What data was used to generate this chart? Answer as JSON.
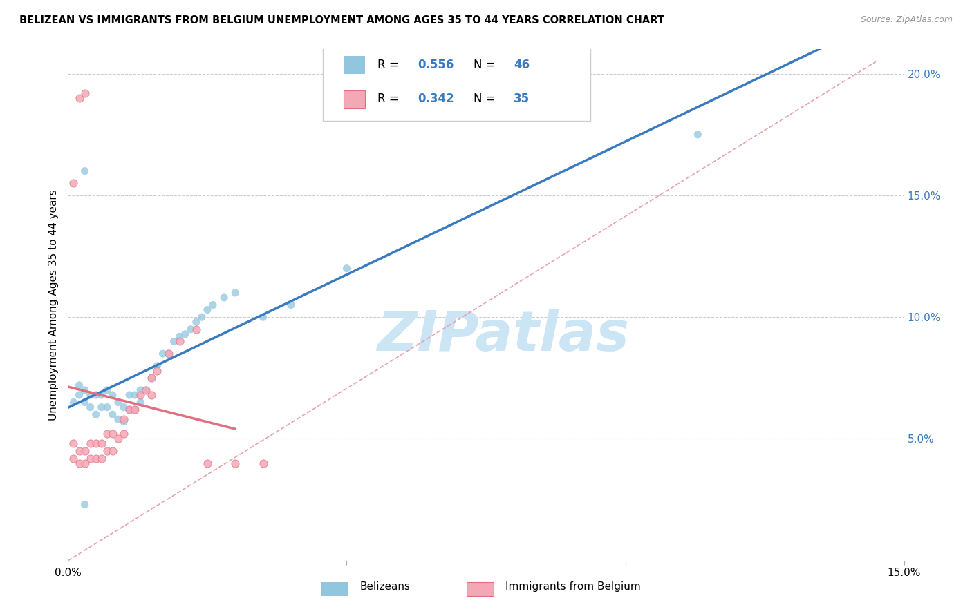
{
  "title": "BELIZEAN VS IMMIGRANTS FROM BELGIUM UNEMPLOYMENT AMONG AGES 35 TO 44 YEARS CORRELATION CHART",
  "source": "Source: ZipAtlas.com",
  "ylabel": "Unemployment Among Ages 35 to 44 years",
  "xlim": [
    0.0,
    0.15
  ],
  "ylim": [
    0.0,
    0.21
  ],
  "blue_color": "#92c5de",
  "pink_color": "#f4a7b5",
  "blue_line_color": "#3a7abf",
  "pink_line_color": "#e07080",
  "diag_line_color": "#e8a0b0",
  "watermark_color": "#cce5f5",
  "legend_text_color": "#3a7abf",
  "right_tick_color": "#3a7abf",
  "R1": "0.556",
  "N1": "46",
  "R2": "0.342",
  "N2": "35",
  "belizean_x": [
    0.001,
    0.002,
    0.002,
    0.003,
    0.003,
    0.004,
    0.004,
    0.005,
    0.005,
    0.006,
    0.006,
    0.007,
    0.007,
    0.008,
    0.008,
    0.009,
    0.009,
    0.01,
    0.01,
    0.011,
    0.011,
    0.012,
    0.012,
    0.013,
    0.013,
    0.014,
    0.015,
    0.016,
    0.017,
    0.018,
    0.019,
    0.02,
    0.021,
    0.022,
    0.023,
    0.024,
    0.025,
    0.026,
    0.028,
    0.03,
    0.035,
    0.04,
    0.05,
    0.003,
    0.113,
    0.003
  ],
  "belizean_y": [
    0.065,
    0.068,
    0.072,
    0.065,
    0.07,
    0.063,
    0.068,
    0.06,
    0.068,
    0.063,
    0.068,
    0.063,
    0.07,
    0.06,
    0.068,
    0.058,
    0.065,
    0.057,
    0.063,
    0.062,
    0.068,
    0.062,
    0.068,
    0.065,
    0.07,
    0.07,
    0.075,
    0.08,
    0.085,
    0.085,
    0.09,
    0.092,
    0.093,
    0.095,
    0.098,
    0.1,
    0.103,
    0.105,
    0.108,
    0.11,
    0.1,
    0.105,
    0.12,
    0.16,
    0.175,
    0.023
  ],
  "immigrant_x": [
    0.001,
    0.001,
    0.002,
    0.002,
    0.003,
    0.003,
    0.004,
    0.004,
    0.005,
    0.005,
    0.006,
    0.006,
    0.007,
    0.007,
    0.008,
    0.008,
    0.009,
    0.01,
    0.01,
    0.011,
    0.012,
    0.013,
    0.014,
    0.015,
    0.015,
    0.016,
    0.018,
    0.02,
    0.023,
    0.025,
    0.03,
    0.035,
    0.001,
    0.002,
    0.003
  ],
  "immigrant_y": [
    0.042,
    0.048,
    0.04,
    0.045,
    0.04,
    0.045,
    0.042,
    0.048,
    0.042,
    0.048,
    0.042,
    0.048,
    0.045,
    0.052,
    0.045,
    0.052,
    0.05,
    0.052,
    0.058,
    0.062,
    0.062,
    0.068,
    0.07,
    0.068,
    0.075,
    0.078,
    0.085,
    0.09,
    0.095,
    0.04,
    0.04,
    0.04,
    0.155,
    0.19,
    0.192
  ]
}
